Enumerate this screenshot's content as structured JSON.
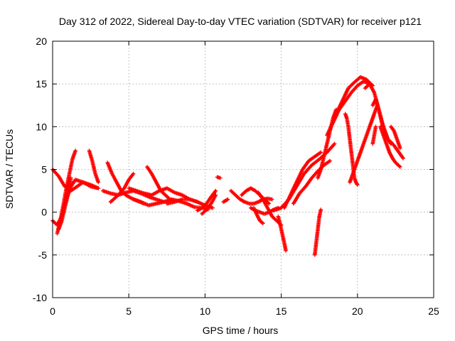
{
  "chart_data": {
    "type": "scatter",
    "title": "Day 312 of 2022, Sidereal Day-to-day VTEC variation (SDTVAR) for receiver p121",
    "xlabel": "GPS time / hours",
    "ylabel": "SDTVAR / TECUs",
    "xlim": [
      0,
      25
    ],
    "ylim": [
      -10,
      20
    ],
    "xticks": [
      0,
      5,
      10,
      15,
      20,
      25
    ],
    "yticks": [
      -10,
      -5,
      0,
      5,
      10,
      15,
      20
    ],
    "xtick_labels": [
      "0",
      "5",
      "10",
      "15",
      "20",
      "25"
    ],
    "ytick_labels": [
      "-10",
      "-5",
      "0",
      "5",
      "10",
      "15",
      "20"
    ],
    "grid": true,
    "marker": "+",
    "series_color": "#ff0000",
    "tracks": [
      {
        "name": "t1",
        "x": [
          0.0,
          0.3,
          0.6,
          0.9,
          1.2,
          1.5,
          2.0,
          2.5,
          3.0
        ],
        "y": [
          -1.0,
          -1.5,
          -0.5,
          1.5,
          3.0,
          3.8,
          3.5,
          3.0,
          2.8
        ]
      },
      {
        "name": "t2",
        "x": [
          0.0,
          0.4,
          0.8,
          1.2,
          1.6,
          2.0,
          2.5,
          3.0
        ],
        "y": [
          5.0,
          4.2,
          3.0,
          2.5,
          3.0,
          3.5,
          3.2,
          2.8
        ]
      },
      {
        "name": "t3",
        "x": [
          0.3,
          0.5,
          0.7,
          0.9,
          1.1,
          1.3,
          1.5
        ],
        "y": [
          -2.5,
          -1.0,
          0.8,
          2.8,
          4.5,
          6.2,
          7.2
        ]
      },
      {
        "name": "t4",
        "x": [
          0.4,
          0.6,
          0.8,
          1.0,
          1.2
        ],
        "y": [
          -2.0,
          -1.0,
          0.5,
          2.0,
          4.0
        ]
      },
      {
        "name": "t5",
        "x": [
          2.4,
          2.6,
          2.8,
          3.0
        ],
        "y": [
          7.2,
          6.0,
          4.5,
          3.5
        ]
      },
      {
        "name": "t6",
        "x": [
          3.3,
          3.8,
          4.3,
          4.8,
          5.3,
          5.8,
          6.3,
          6.8,
          7.3
        ],
        "y": [
          2.5,
          2.2,
          2.0,
          2.3,
          2.5,
          2.2,
          1.8,
          1.5,
          1.2
        ]
      },
      {
        "name": "t7",
        "x": [
          3.6,
          3.9,
          4.2,
          4.5,
          4.8,
          5.2,
          5.6,
          6.0
        ],
        "y": [
          5.8,
          4.5,
          3.5,
          2.5,
          2.0,
          1.6,
          1.3,
          1.0
        ]
      },
      {
        "name": "t8",
        "x": [
          3.8,
          4.0,
          4.3,
          4.7,
          5.0,
          5.3
        ],
        "y": [
          1.2,
          1.5,
          2.0,
          2.8,
          3.8,
          4.5
        ]
      },
      {
        "name": "t9",
        "x": [
          5.0,
          5.5,
          6.0,
          6.5,
          7.0,
          7.5,
          8.0,
          8.5,
          9.0,
          9.5
        ],
        "y": [
          2.8,
          2.5,
          2.2,
          2.0,
          2.5,
          2.8,
          2.3,
          2.0,
          1.5,
          1.2
        ]
      },
      {
        "name": "t10",
        "x": [
          6.2,
          6.5,
          6.8,
          7.1,
          7.4,
          7.7,
          8.0
        ],
        "y": [
          5.3,
          4.5,
          3.5,
          2.5,
          2.0,
          1.5,
          1.2
        ]
      },
      {
        "name": "t11",
        "x": [
          5.3,
          5.8,
          6.3,
          6.8,
          7.3,
          7.8,
          8.3,
          8.8,
          9.3,
          9.8,
          10.2
        ],
        "y": [
          1.5,
          1.2,
          0.8,
          1.0,
          1.2,
          1.5,
          1.3,
          1.0,
          0.6,
          0.5,
          0.3
        ]
      },
      {
        "name": "t12",
        "x": [
          7.5,
          8.0,
          8.5,
          9.0,
          9.5,
          10.0,
          10.5
        ],
        "y": [
          1.0,
          1.2,
          1.5,
          1.5,
          1.2,
          0.8,
          0.5
        ]
      },
      {
        "name": "t13",
        "x": [
          9.5,
          9.8,
          10.1,
          10.4,
          10.7
        ],
        "y": [
          0.2,
          0.5,
          1.0,
          1.8,
          2.5
        ]
      },
      {
        "name": "t14",
        "x": [
          10.8,
          11.0
        ],
        "y": [
          4.1,
          4.0
        ]
      },
      {
        "name": "t15",
        "x": [
          9.8,
          10.1,
          10.4,
          10.7
        ],
        "y": [
          -0.2,
          0.3,
          1.0,
          2.0
        ]
      },
      {
        "name": "t16",
        "x": [
          11.2,
          11.5
        ],
        "y": [
          1.2,
          1.5
        ]
      },
      {
        "name": "t17",
        "x": [
          11.7,
          12.0,
          12.3,
          12.6,
          12.9,
          13.2,
          13.5,
          13.8,
          14.1,
          14.4
        ],
        "y": [
          2.5,
          2.0,
          1.5,
          1.2,
          1.0,
          1.0,
          1.2,
          1.5,
          1.6,
          1.5
        ]
      },
      {
        "name": "t18",
        "x": [
          12.4,
          12.7,
          13.0,
          13.3,
          13.6,
          13.9,
          14.2
        ],
        "y": [
          2.0,
          2.5,
          2.8,
          2.5,
          2.0,
          1.5,
          1.0
        ]
      },
      {
        "name": "t19",
        "x": [
          13.0,
          13.3,
          13.6,
          13.9,
          14.2,
          14.5,
          14.8
        ],
        "y": [
          0.5,
          0.2,
          0.0,
          -0.2,
          0.0,
          0.3,
          0.5
        ]
      },
      {
        "name": "t20",
        "x": [
          13.5,
          13.8,
          14.1,
          14.4,
          14.7,
          15.0
        ],
        "y": [
          2.3,
          1.5,
          0.5,
          -0.5,
          -1.0,
          -1.5
        ]
      },
      {
        "name": "t21",
        "x": [
          13.2,
          13.4,
          13.6,
          13.8
        ],
        "y": [
          0.5,
          -0.3,
          -1.0,
          -1.3
        ]
      },
      {
        "name": "t22",
        "x": [
          14.8,
          14.9,
          15.0,
          15.1,
          15.2,
          15.3
        ],
        "y": [
          -0.5,
          -1.2,
          -2.0,
          -2.8,
          -3.6,
          -4.5
        ]
      },
      {
        "name": "t23",
        "x": [
          14.5,
          15.0,
          15.5,
          16.0,
          16.5,
          17.0,
          17.5,
          18.0,
          18.5
        ],
        "y": [
          0.2,
          0.5,
          1.5,
          3.0,
          4.5,
          5.5,
          6.2,
          7.0,
          8.0
        ]
      },
      {
        "name": "t24",
        "x": [
          15.2,
          15.6,
          16.0,
          16.4,
          16.8,
          17.2,
          17.6
        ],
        "y": [
          0.5,
          2.0,
          3.5,
          5.0,
          6.0,
          6.5,
          7.0
        ]
      },
      {
        "name": "t25",
        "x": [
          15.8,
          16.2,
          16.6,
          17.0,
          17.4,
          17.8,
          18.2
        ],
        "y": [
          1.0,
          2.2,
          3.0,
          4.0,
          4.8,
          5.5,
          6.0
        ]
      },
      {
        "name": "t26",
        "x": [
          17.2,
          17.3,
          17.4,
          17.5,
          17.6
        ],
        "y": [
          -5.0,
          -3.5,
          -2.0,
          -0.5,
          0.3
        ]
      },
      {
        "name": "t27",
        "x": [
          17.4,
          17.6,
          17.8,
          18.0,
          18.2,
          18.4,
          18.6
        ],
        "y": [
          4.0,
          5.0,
          6.5,
          8.0,
          9.5,
          11.0,
          12.0
        ]
      },
      {
        "name": "t28",
        "x": [
          18.0,
          18.4,
          18.8,
          19.2,
          19.6,
          20.0,
          20.4,
          20.8
        ],
        "y": [
          9.0,
          10.5,
          12.0,
          13.0,
          14.0,
          14.8,
          15.3,
          15.0
        ]
      },
      {
        "name": "t29",
        "x": [
          18.6,
          19.0,
          19.4,
          19.8,
          20.2,
          20.6,
          21.0
        ],
        "y": [
          11.5,
          13.0,
          14.5,
          15.2,
          15.8,
          15.5,
          14.8
        ]
      },
      {
        "name": "t30",
        "x": [
          19.2,
          19.3,
          19.4,
          19.5,
          19.6,
          19.7,
          19.8,
          19.9,
          20.0
        ],
        "y": [
          11.5,
          11.0,
          10.0,
          8.5,
          7.0,
          5.5,
          4.0,
          3.5,
          3.2
        ]
      },
      {
        "name": "t31",
        "x": [
          19.5,
          19.7,
          19.9,
          20.1,
          20.3,
          20.5,
          20.7,
          20.9,
          21.1,
          21.3
        ],
        "y": [
          3.5,
          4.5,
          5.5,
          6.5,
          7.5,
          8.5,
          9.5,
          10.5,
          11.5,
          12.5
        ]
      },
      {
        "name": "t32",
        "x": [
          20.5,
          20.8,
          21.1,
          21.4,
          21.7,
          22.0
        ],
        "y": [
          14.5,
          15.0,
          14.0,
          12.0,
          10.0,
          8.5
        ]
      },
      {
        "name": "t33",
        "x": [
          21.0,
          21.2,
          21.4,
          21.6,
          21.8,
          22.0,
          22.2
        ],
        "y": [
          12.5,
          13.2,
          12.0,
          10.5,
          9.5,
          8.5,
          8.0
        ]
      },
      {
        "name": "t34",
        "x": [
          21.5,
          21.7,
          21.9,
          22.1,
          22.3,
          22.5,
          22.8
        ],
        "y": [
          10.0,
          9.0,
          8.0,
          7.0,
          6.3,
          5.8,
          5.3
        ]
      },
      {
        "name": "t35",
        "x": [
          21.8,
          22.0,
          22.2,
          22.4,
          22.6,
          22.8,
          23.0
        ],
        "y": [
          9.0,
          8.5,
          8.2,
          7.8,
          7.3,
          6.8,
          6.3
        ]
      },
      {
        "name": "t36",
        "x": [
          22.2,
          22.4,
          22.6,
          22.8
        ],
        "y": [
          10.0,
          9.5,
          8.5,
          7.5
        ]
      },
      {
        "name": "t37",
        "x": [
          21.0,
          21.1,
          21.2
        ],
        "y": [
          8.0,
          9.0,
          10.0
        ]
      }
    ]
  }
}
